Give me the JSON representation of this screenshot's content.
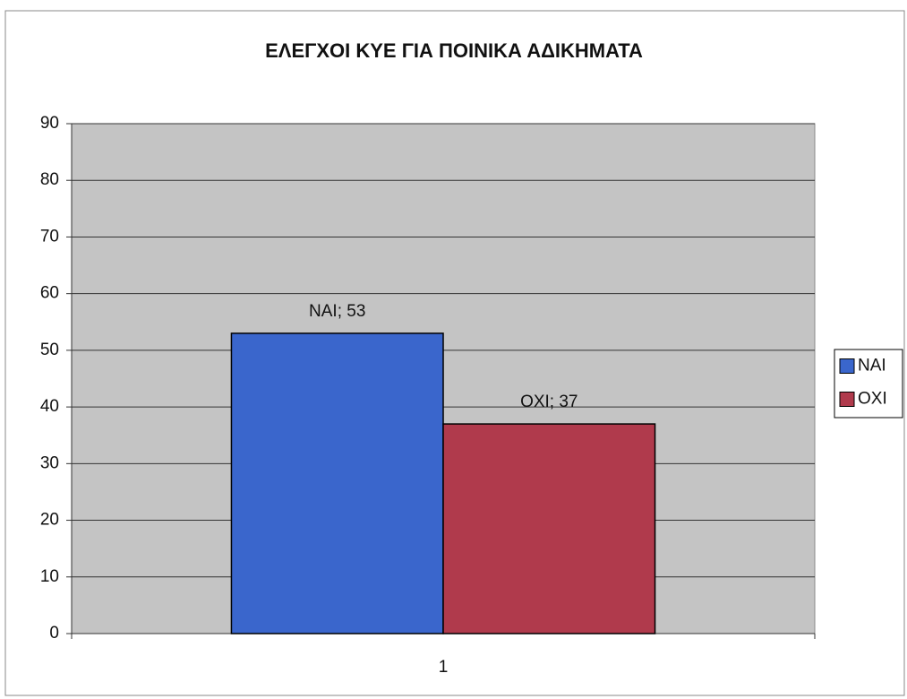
{
  "chart_data": {
    "type": "bar",
    "title": "ΕΛΕΓΧΟΙ ΚΥΕ ΓΙΑ ΠΟΙΝΙΚΑ ΑΔΙΚΗΜΑΤΑ",
    "categories": [
      "1"
    ],
    "series": [
      {
        "name": "NAI",
        "color": "#3a66cc",
        "values": [
          53
        ],
        "value_labels": [
          "NAI; 53"
        ]
      },
      {
        "name": "OXI",
        "color": "#b03a4c",
        "values": [
          37
        ],
        "value_labels": [
          "OXI; 37"
        ]
      }
    ],
    "ylim": [
      0,
      90
    ],
    "yticks": [
      0,
      10,
      20,
      30,
      40,
      50,
      60,
      70,
      80,
      90
    ],
    "grid": true,
    "legend": "right"
  }
}
